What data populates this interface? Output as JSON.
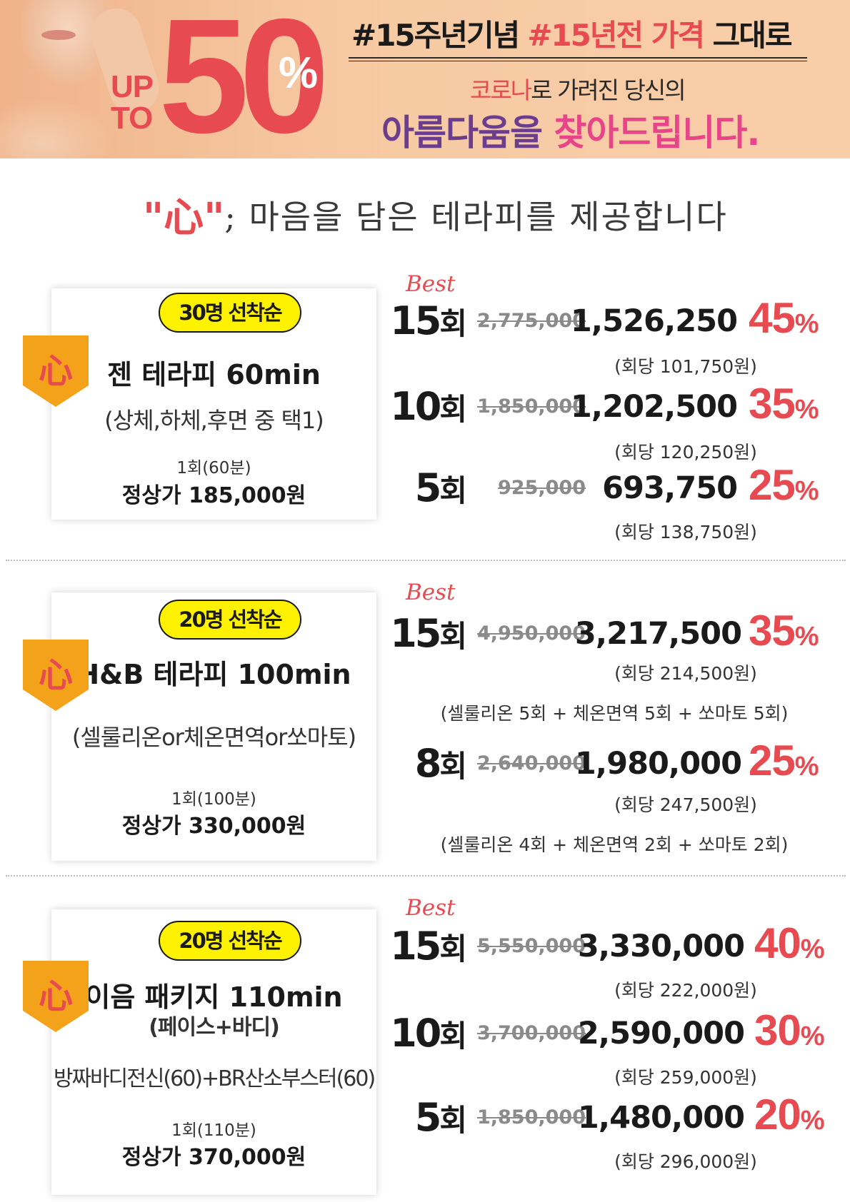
{
  "banner": {
    "up": "UP",
    "to": "TO",
    "big_number": "50",
    "percent": "%",
    "tag1": "#15주년기념",
    "tag2": "#15년전 가격",
    "tag3": " 그대로",
    "sub1_red": "코로나",
    "sub1_rest": "로 가려진 당신의",
    "sub2_a": "아름다움을 ",
    "sub2_b": "찾아드립니다."
  },
  "tagline": {
    "quote": "\"心\"",
    "rest": "; 마음을 담은 테라피를 제공합니다"
  },
  "heart_char": "心",
  "best_label": "Best",
  "colors": {
    "accent": "#e84a52",
    "badge": "#fff200",
    "shield": "#f5a21b"
  },
  "sections": [
    {
      "badge": "30명 선착순",
      "title": "젠 테라피  60min",
      "subtitle": "(상체,하체,후면 중 택1)",
      "session": "1회(60분)",
      "regular": "정상가 185,000원",
      "rows": [
        {
          "count": "15",
          "unit": "회",
          "old": "2,775,000",
          "price": "1,526,250",
          "disc": "45",
          "pct": "%",
          "per": "(회당 101,750원)"
        },
        {
          "count": "10",
          "unit": "회",
          "old": "1,850,000",
          "price": "1,202,500",
          "disc": "35",
          "pct": "%",
          "per": "(회당 120,250원)"
        },
        {
          "count": "5",
          "unit": "회",
          "old": "925,000",
          "price": "693,750",
          "disc": "25",
          "pct": "%",
          "per": "(회당 138,750원)"
        }
      ]
    },
    {
      "badge": "20명 선착순",
      "title": "H&B 테라피 100min",
      "subtitle": "(셀룰리온or체온면역or쏘마토)",
      "session": "1회(100분)",
      "regular": "정상가 330,000원",
      "rows": [
        {
          "count": "15",
          "unit": "회",
          "old": "4,950,000",
          "price": "3,217,500",
          "disc": "35",
          "pct": "%",
          "per": "(회당 214,500원)",
          "note": "(셀룰리온 5회 +  체온면역 5회 + 쏘마토 5회)"
        },
        {
          "count": "8",
          "unit": "회",
          "old": "2,640,000",
          "price": "1,980,000",
          "disc": "25",
          "pct": "%",
          "per": "(회당 247,500원)",
          "note": "(셀룰리온 4회 +  체온면역 2회 + 쏘마토 2회)"
        }
      ]
    },
    {
      "badge": "20명 선착순",
      "title": "이음 패키지 110min",
      "title2": "(페이스+바디)",
      "subtitle": "방짜바디전신(60)+BR산소부스터(60)",
      "session": "1회(110분)",
      "regular": "정상가 370,000원",
      "rows": [
        {
          "count": "15",
          "unit": "회",
          "old": "5,550,000",
          "price": "3,330,000",
          "disc": "40",
          "pct": "%",
          "per": "(회당 222,000원)"
        },
        {
          "count": "10",
          "unit": "회",
          "old": "3,700,000",
          "price": "2,590,000",
          "disc": "30",
          "pct": "%",
          "per": "(회당 259,000원)"
        },
        {
          "count": "5",
          "unit": "회",
          "old": "1,850,000",
          "price": "1,480,000",
          "disc": "20",
          "pct": "%",
          "per": "(회당 296,000원)"
        }
      ]
    }
  ]
}
